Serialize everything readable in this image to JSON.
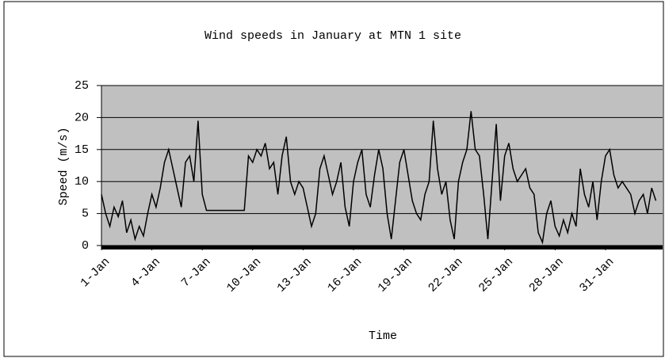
{
  "chart_data": {
    "type": "line",
    "title": "Wind speeds in January at MTN 1 site",
    "x_label": "Time",
    "y_label": "Speed (m/s)",
    "xlim": [
      1,
      34.4
    ],
    "xticks": [
      {
        "value": 1,
        "label": "1-Jan"
      },
      {
        "value": 4,
        "label": "4-Jan"
      },
      {
        "value": 7,
        "label": "7-Jan"
      },
      {
        "value": 10,
        "label": "10-Jan"
      },
      {
        "value": 13,
        "label": "13-Jan"
      },
      {
        "value": 16,
        "label": "16-Jan"
      },
      {
        "value": 19,
        "label": "19-Jan"
      },
      {
        "value": 22,
        "label": "22-Jan"
      },
      {
        "value": 25,
        "label": "25-Jan"
      },
      {
        "value": 28,
        "label": "28-Jan"
      },
      {
        "value": 31,
        "label": "31-Jan"
      }
    ],
    "ylim": [
      0,
      25
    ],
    "yticks": [
      0,
      5,
      10,
      15,
      20,
      25
    ],
    "grid": true,
    "background": "#c0c0c0",
    "color": "#000000",
    "x": [
      1,
      1.25,
      1.5,
      1.75,
      2,
      2.25,
      2.5,
      2.75,
      3,
      3.25,
      3.5,
      3.75,
      4,
      4.25,
      4.5,
      4.75,
      5,
      5.25,
      5.5,
      5.75,
      6,
      6.25,
      6.5,
      6.75,
      7,
      7.25,
      7.5,
      7.75,
      8,
      8.25,
      8.5,
      8.75,
      9,
      9.25,
      9.5,
      9.75,
      10,
      10.25,
      10.5,
      10.75,
      11,
      11.25,
      11.5,
      11.75,
      12,
      12.25,
      12.5,
      12.75,
      13,
      13.25,
      13.5,
      13.75,
      14,
      14.25,
      14.5,
      14.75,
      15,
      15.25,
      15.5,
      15.75,
      16,
      16.25,
      16.5,
      16.75,
      17,
      17.25,
      17.5,
      17.75,
      18,
      18.25,
      18.5,
      18.75,
      19,
      19.25,
      19.5,
      19.75,
      20,
      20.25,
      20.5,
      20.75,
      21,
      21.25,
      21.5,
      21.75,
      22,
      22.25,
      22.5,
      22.75,
      23,
      23.25,
      23.5,
      23.75,
      24,
      24.25,
      24.5,
      24.75,
      25,
      25.25,
      25.5,
      25.75,
      26,
      26.25,
      26.5,
      26.75,
      27,
      27.25,
      27.5,
      27.75,
      28,
      28.25,
      28.5,
      28.75,
      29,
      29.25,
      29.5,
      29.75,
      30,
      30.25,
      30.5,
      30.75,
      31,
      31.25,
      31.5,
      31.75,
      32,
      32.25,
      32.5,
      32.75,
      33,
      33.25,
      33.5,
      33.75,
      34
    ],
    "values": [
      8,
      5,
      3,
      6,
      4.5,
      7,
      2,
      4,
      1,
      3,
      1.5,
      5,
      8,
      6,
      9,
      13,
      15,
      12,
      9,
      6,
      13,
      14,
      10,
      19.5,
      8,
      5.5,
      5.5,
      5.5,
      5.5,
      5.5,
      5.5,
      5.5,
      5.5,
      5.5,
      5.5,
      14,
      13,
      15,
      14,
      16,
      12,
      13,
      8,
      14,
      17,
      10,
      8,
      10,
      9,
      6,
      3,
      5,
      12,
      14,
      11,
      8,
      10,
      13,
      6,
      3,
      10,
      13,
      15,
      8,
      6,
      11,
      15,
      12,
      5,
      1,
      7,
      13,
      15,
      11,
      7,
      5,
      4,
      8,
      10,
      19.5,
      12,
      8,
      10,
      4,
      1,
      10,
      13,
      15,
      21,
      15,
      14,
      8,
      1,
      10,
      19,
      7,
      14,
      16,
      12,
      10,
      11,
      12,
      9,
      8,
      2,
      0.5,
      5,
      7,
      3,
      1.5,
      4,
      2,
      5,
      3,
      12,
      8,
      6,
      10,
      4,
      10,
      14,
      15,
      11,
      9,
      10,
      9,
      8,
      5,
      7,
      8,
      5,
      9,
      7
    ]
  }
}
